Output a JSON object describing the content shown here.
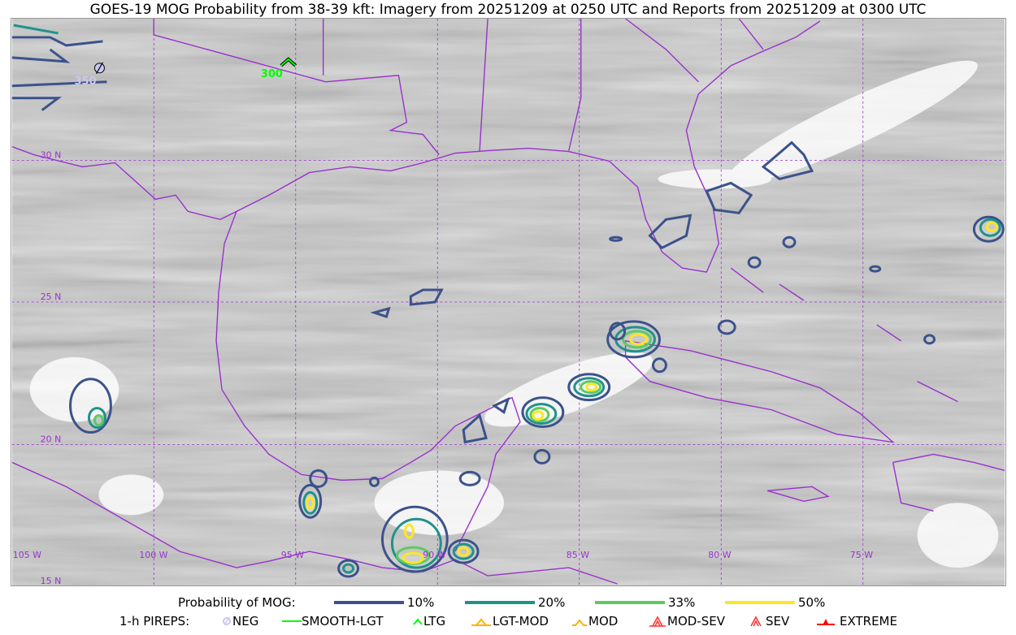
{
  "title": "GOES-19 MOG Probability from 38-39 kft: Imagery from 20251209 at 0250 UTC and Reports from 20251209 at 0300 UTC",
  "map": {
    "lat_labels": [
      "30 N",
      "25 N",
      "20 N",
      "15 N"
    ],
    "lon_labels": [
      "105 W",
      "100 W",
      "95 W",
      "90 W",
      "85 W",
      "80 W",
      "75 W"
    ],
    "boundary_color": "#9932cc",
    "reports": [
      {
        "type": "NEG",
        "icon": "neg-circle-slash-icon",
        "altitude_label": "350",
        "color": "#c8c8f0"
      },
      {
        "type": "LTG",
        "icon": "ltg-caret-icon",
        "altitude_label": "300",
        "color": "#00ff00"
      }
    ]
  },
  "legend": {
    "probability_label": "Probability of MOG:",
    "levels": [
      {
        "label": "10%",
        "color": "#3b528b"
      },
      {
        "label": "20%",
        "color": "#21918c"
      },
      {
        "label": "33%",
        "color": "#5ec962"
      },
      {
        "label": "50%",
        "color": "#fde725"
      }
    ],
    "pireps_label": "1-h PIREPS:",
    "pireps": [
      {
        "label": "NEG",
        "icon": "neg-icon",
        "color": "#c8c8f0"
      },
      {
        "label": "SMOOTH-LGT",
        "icon": "smooth-lgt-line-icon",
        "color": "#00ff00"
      },
      {
        "label": "LTG",
        "icon": "ltg-caret-icon",
        "color": "#00ff00"
      },
      {
        "label": "LGT-MOD",
        "icon": "lgt-mod-icon",
        "color": "#ffb000"
      },
      {
        "label": "MOD",
        "icon": "mod-caret-icon",
        "color": "#ffb000"
      },
      {
        "label": "MOD-SEV",
        "icon": "mod-sev-icon",
        "color": "#ff3030"
      },
      {
        "label": "SEV",
        "icon": "sev-icon",
        "color": "#ff3030"
      },
      {
        "label": "EXTREME",
        "icon": "extreme-icon",
        "color": "#ff0000"
      }
    ]
  }
}
